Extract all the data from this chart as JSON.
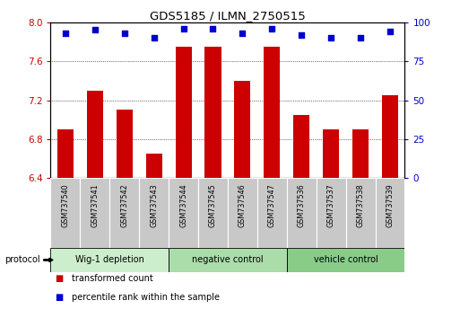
{
  "title": "GDS5185 / ILMN_2750515",
  "samples": [
    "GSM737540",
    "GSM737541",
    "GSM737542",
    "GSM737543",
    "GSM737544",
    "GSM737545",
    "GSM737546",
    "GSM737547",
    "GSM737536",
    "GSM737537",
    "GSM737538",
    "GSM737539"
  ],
  "bar_values": [
    6.9,
    7.3,
    7.1,
    6.65,
    7.75,
    7.75,
    7.4,
    7.75,
    7.05,
    6.9,
    6.9,
    7.25
  ],
  "percentile_values": [
    93,
    95,
    93,
    90,
    96,
    96,
    93,
    96,
    92,
    90,
    90,
    94
  ],
  "ylim_left": [
    6.4,
    8.0
  ],
  "ylim_right": [
    0,
    100
  ],
  "yticks_left": [
    6.4,
    6.8,
    7.2,
    7.6,
    8.0
  ],
  "yticks_right": [
    0,
    25,
    50,
    75,
    100
  ],
  "bar_color": "#cc0000",
  "dot_color": "#0000cc",
  "groups": [
    {
      "label": "Wig-1 depletion",
      "indices": [
        0,
        1,
        2,
        3
      ],
      "color": "#d4f0d4"
    },
    {
      "label": "negative control",
      "indices": [
        4,
        5,
        6,
        7
      ],
      "color": "#a8e0a8"
    },
    {
      "label": "vehicle control",
      "indices": [
        8,
        9,
        10,
        11
      ],
      "color": "#7acc7a"
    }
  ],
  "ylabel_left_color": "#cc0000",
  "ylabel_right_color": "#0000cc",
  "legend_red_label": "transformed count",
  "legend_blue_label": "percentile rank within the sample",
  "protocol_label": "protocol",
  "grid_ticks": [
    6.8,
    7.2,
    7.6
  ]
}
